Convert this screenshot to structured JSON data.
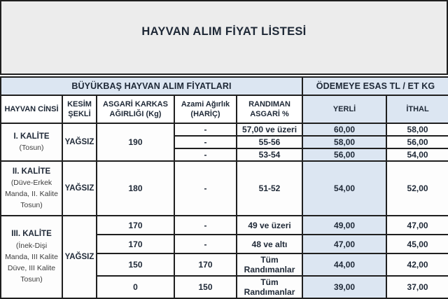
{
  "title": "HAYVAN ALIM FİYAT LİSTESİ",
  "colors": {
    "accent_blue": "#dce6f2",
    "title_gray": "#ececec",
    "border": "#1f1f1f",
    "text": "#1e2836"
  },
  "table": {
    "banner": {
      "left": "BÜYÜKBAŞ HAYVAN ALIM FİYATLARI",
      "right": "ÖDEMEYE ESAS TL / ET KG"
    },
    "columns": [
      "HAYVAN CİNSİ",
      "KESİM ŞEKLİ",
      "ASGARİ KARKAS AĞIRLIĞI (Kg)",
      "Azami Ağırlık (HARİÇ)",
      "RANDIMAN ASGARİ %",
      "YERLİ",
      "İTHAL"
    ],
    "sections": [
      {
        "name": "I. KALİTE",
        "subname": "(Tosun)",
        "kesim": "YAĞSIZ",
        "asgari": "190",
        "rows": [
          {
            "azami": "-",
            "randiman": "57,00 ve üzeri",
            "yerli": "60,00",
            "ithal": "58,00"
          },
          {
            "azami": "-",
            "randiman": "55-56",
            "yerli": "58,00",
            "ithal": "56,00"
          },
          {
            "azami": "-",
            "randiman": "53-54",
            "yerli": "56,00",
            "ithal": "54,00"
          }
        ]
      },
      {
        "name": "II. KALİTE",
        "subname": "(Düve-Erkek Manda, II. Kalite Tosun)",
        "kesim": "YAĞSIZ",
        "asgari": "180",
        "rows": [
          {
            "azami": "-",
            "randiman": "51-52",
            "yerli": "54,00",
            "ithal": "52,00"
          }
        ]
      },
      {
        "name": "III. KALİTE",
        "subname": "(İnek-Dişi Manda, III Kalite Düve,  III Kalite Tosun)",
        "kesim": "YAĞSIZ",
        "asgari": null,
        "rows": [
          {
            "asgari": "170",
            "azami": "-",
            "randiman": "49 ve üzeri",
            "yerli": "49,00",
            "ithal": "47,00"
          },
          {
            "asgari": "170",
            "azami": "-",
            "randiman": "48 ve altı",
            "yerli": "47,00",
            "ithal": "45,00"
          },
          {
            "asgari": "150",
            "azami": "170",
            "randiman": "Tüm Randımanlar",
            "yerli": "44,00",
            "ithal": "42,00"
          },
          {
            "asgari": "0",
            "azami": "150",
            "randiman": "Tüm Randımanlar",
            "yerli": "39,00",
            "ithal": "37,00"
          }
        ]
      }
    ]
  }
}
